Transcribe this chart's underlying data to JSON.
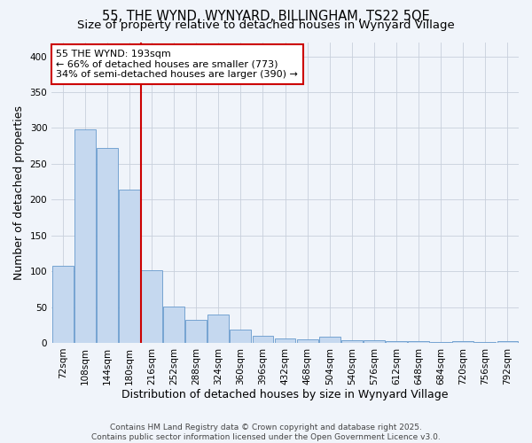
{
  "title_line1": "55, THE WYND, WYNYARD, BILLINGHAM, TS22 5QE",
  "title_line2": "Size of property relative to detached houses in Wynyard Village",
  "xlabel": "Distribution of detached houses by size in Wynyard Village",
  "ylabel": "Number of detached properties",
  "categories": [
    "72sqm",
    "108sqm",
    "144sqm",
    "180sqm",
    "216sqm",
    "252sqm",
    "288sqm",
    "324sqm",
    "360sqm",
    "396sqm",
    "432sqm",
    "468sqm",
    "504sqm",
    "540sqm",
    "576sqm",
    "612sqm",
    "648sqm",
    "684sqm",
    "720sqm",
    "756sqm",
    "792sqm"
  ],
  "values": [
    108,
    298,
    272,
    214,
    101,
    51,
    32,
    40,
    19,
    10,
    6,
    5,
    8,
    4,
    4,
    3,
    2,
    1,
    3,
    1,
    2
  ],
  "bar_color": "#c5d8ef",
  "bar_edge_color": "#6699cc",
  "bar_width": 0.95,
  "grid_color": "#c8d0dc",
  "bg_color": "#f0f4fa",
  "plot_bg_color": "#f0f4fa",
  "red_line_x": 3.5,
  "red_line_color": "#cc0000",
  "annotation_text": "55 THE WYND: 193sqm\n← 66% of detached houses are smaller (773)\n34% of semi-detached houses are larger (390) →",
  "annotation_box_facecolor": "#ffffff",
  "annotation_border_color": "#cc0000",
  "ylim": [
    0,
    420
  ],
  "yticks": [
    0,
    50,
    100,
    150,
    200,
    250,
    300,
    350,
    400
  ],
  "footnote": "Contains HM Land Registry data © Crown copyright and database right 2025.\nContains public sector information licensed under the Open Government Licence v3.0.",
  "title_fontsize": 10.5,
  "subtitle_fontsize": 9.5,
  "axis_label_fontsize": 9,
  "tick_fontsize": 7.5,
  "annot_fontsize": 8,
  "footnote_fontsize": 6.5
}
